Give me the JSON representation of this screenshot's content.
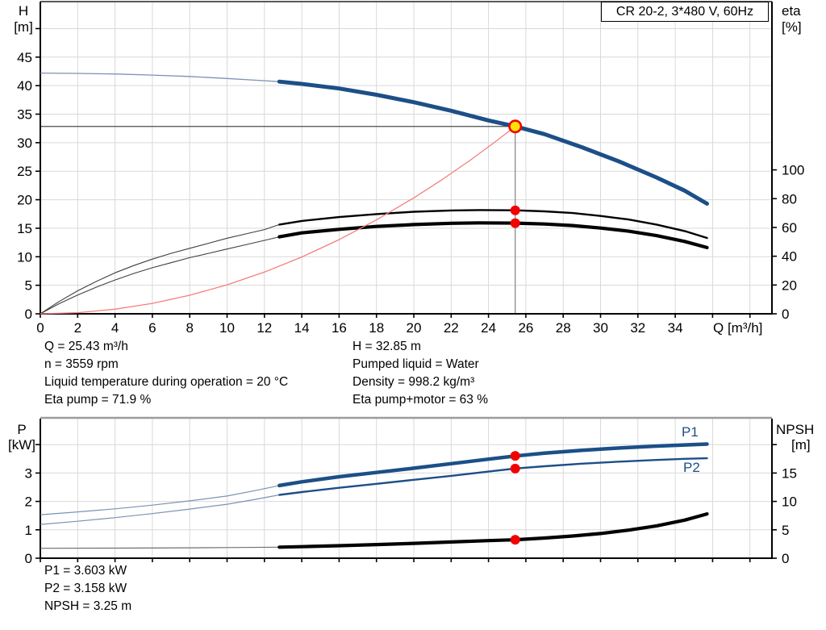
{
  "title_box": {
    "label": "CR 20-2, 3*480 V, 60Hz"
  },
  "info_top_left": {
    "lines": [
      "Q = 25.43 m³/h",
      "n = 3559 rpm",
      "Liquid temperature during operation = 20 °C",
      "Eta pump = 71.9 %"
    ]
  },
  "info_top_right": {
    "lines": [
      "H = 32.85 m",
      "Pumped liquid = Water",
      "Density = 998.2 kg/m³",
      "Eta pump+motor = 63 %"
    ]
  },
  "info_bottom": {
    "lines": [
      "P1 = 3.603 kW",
      "P2 = 3.158 kW",
      "NPSH = 3.25 m"
    ]
  },
  "colors": {
    "blue": "#1c4f87",
    "blue_thin": "#7d92b4",
    "black": "#000000",
    "eta_thin": "#3f3f3f",
    "npsh_thin": "#6f6f6f",
    "red": "#f20000",
    "red_line": "#f57e7e",
    "yellow": "#ffe10a",
    "grid": "#d9d9d9",
    "axis": "#000000",
    "marker_gray": "#8a8a8a",
    "marker_dark": "#4c4c4c",
    "frame_gray": "#9c9c9c",
    "frame_dark": "#222222",
    "label_blue": "#1c4f87"
  },
  "chart_data": [
    {
      "type": "line",
      "id": "head-efficiency-chart",
      "title": "CR 20-2, 3*480 V, 60Hz",
      "xlabel": "Q [m³/h]",
      "xlim": [
        0,
        39.2
      ],
      "x_ticks": [
        0,
        2,
        4,
        6,
        8,
        10,
        12,
        14,
        16,
        18,
        20,
        22,
        24,
        26,
        28,
        30,
        32,
        34,
        36,
        38
      ],
      "x_ticks_labeled": [
        0,
        2,
        4,
        6,
        8,
        10,
        12,
        14,
        16,
        18,
        20,
        22,
        24,
        26,
        28,
        30,
        32,
        34
      ],
      "ylabel_left": "H",
      "yunit_left": "[m]",
      "ylim_left": [
        0,
        54.7
      ],
      "y_ticks_left": [
        0,
        5,
        10,
        15,
        20,
        25,
        30,
        35,
        40,
        45,
        50
      ],
      "y_ticks_left_labeled": [
        0,
        5,
        10,
        15,
        20,
        25,
        30,
        35,
        40,
        45
      ],
      "ylabel_right": "eta",
      "yunit_right": "[%]",
      "ylim_right": [
        0,
        217
      ],
      "y_ticks_right": [
        0,
        20,
        40,
        60,
        80,
        100
      ],
      "y_ticks_right_labeled": [
        0,
        20,
        40,
        60,
        80,
        100
      ],
      "grid": true,
      "operating_point": {
        "Q": 25.43,
        "H": 32.85
      },
      "series": [
        {
          "name": "head-curve",
          "axis": "left",
          "color": "blue",
          "thin_color": "blue_thin",
          "split_q": 12.8,
          "thick_width": 5,
          "thin_width": 1.3,
          "points": [
            [
              0,
              42.2
            ],
            [
              2,
              42.15
            ],
            [
              4,
              42.05
            ],
            [
              6,
              41.85
            ],
            [
              8,
              41.6
            ],
            [
              10,
              41.25
            ],
            [
              11.5,
              40.95
            ],
            [
              12.8,
              40.7
            ],
            [
              14,
              40.3
            ],
            [
              16,
              39.5
            ],
            [
              18,
              38.4
            ],
            [
              20,
              37.1
            ],
            [
              22,
              35.6
            ],
            [
              24,
              33.9
            ],
            [
              25.43,
              32.85
            ],
            [
              27,
              31.5
            ],
            [
              29,
              29.2
            ],
            [
              31,
              26.7
            ],
            [
              33,
              23.9
            ],
            [
              34.5,
              21.6
            ],
            [
              35.7,
              19.3
            ]
          ]
        },
        {
          "name": "eta-pump-curve",
          "axis": "right",
          "color": "black",
          "thin_color": "eta_thin",
          "split_q": 12.8,
          "thick_width": 2.4,
          "thin_width": 1.1,
          "points": [
            [
              0,
              0
            ],
            [
              1,
              8.5
            ],
            [
              2,
              16
            ],
            [
              3,
              22.5
            ],
            [
              4,
              28.5
            ],
            [
              5,
              33.5
            ],
            [
              6,
              38
            ],
            [
              7,
              42
            ],
            [
              8,
              45.5
            ],
            [
              9,
              49
            ],
            [
              10,
              52.5
            ],
            [
              11,
              55.5
            ],
            [
              12,
              58.5
            ],
            [
              12.8,
              62
            ],
            [
              14,
              64.5
            ],
            [
              16,
              67.2
            ],
            [
              18,
              69.3
            ],
            [
              20,
              70.9
            ],
            [
              22,
              71.8
            ],
            [
              23.5,
              72.1
            ],
            [
              25.43,
              71.9
            ],
            [
              27,
              71.2
            ],
            [
              28.5,
              70
            ],
            [
              30,
              68
            ],
            [
              31.5,
              65.5
            ],
            [
              33,
              62
            ],
            [
              34.5,
              57.5
            ],
            [
              35.7,
              52.7
            ]
          ]
        },
        {
          "name": "eta-pump-motor-curve",
          "axis": "right",
          "color": "black",
          "thin_color": "eta_thin",
          "split_q": 12.8,
          "thick_width": 4.2,
          "thin_width": 1.1,
          "points": [
            [
              0,
              0
            ],
            [
              1,
              7
            ],
            [
              2,
              13
            ],
            [
              3,
              18.5
            ],
            [
              4,
              23.5
            ],
            [
              5,
              28
            ],
            [
              6,
              32
            ],
            [
              7,
              35.5
            ],
            [
              8,
              39
            ],
            [
              9,
              42
            ],
            [
              10,
              45
            ],
            [
              11,
              48
            ],
            [
              12,
              51
            ],
            [
              12.8,
              53.5
            ],
            [
              14,
              56.2
            ],
            [
              16,
              58.7
            ],
            [
              18,
              60.7
            ],
            [
              20,
              62
            ],
            [
              22,
              62.9
            ],
            [
              23.5,
              63.2
            ],
            [
              25.43,
              63
            ],
            [
              27,
              62.4
            ],
            [
              28.5,
              61.3
            ],
            [
              30,
              59.6
            ],
            [
              31.5,
              57.4
            ],
            [
              33,
              54.3
            ],
            [
              34.5,
              50.3
            ],
            [
              35.7,
              46
            ]
          ]
        },
        {
          "name": "system-curve",
          "axis": "left",
          "color": "red_line",
          "thin_color": "red_line",
          "split_q": null,
          "thick_width": 1.3,
          "thin_width": 1.3,
          "points": [
            [
              0,
              0
            ],
            [
              2,
              0.2
            ],
            [
              4,
              0.81
            ],
            [
              6,
              1.83
            ],
            [
              8,
              3.25
            ],
            [
              10,
              5.08
            ],
            [
              12,
              7.31
            ],
            [
              14,
              9.96
            ],
            [
              16,
              13.0
            ],
            [
              18,
              16.46
            ],
            [
              20,
              20.32
            ],
            [
              21.5,
              23.49
            ],
            [
              23,
              26.87
            ],
            [
              24.3,
              29.99
            ],
            [
              25.43,
              32.85
            ]
          ]
        }
      ],
      "markers": [
        {
          "name": "duty-point",
          "Q": 25.43,
          "value": 32.85,
          "axis": "left",
          "style": "duty"
        },
        {
          "name": "eta-pump-point",
          "Q": 25.43,
          "value": 71.9,
          "axis": "right",
          "style": "dot"
        },
        {
          "name": "eta-pump-motor-point",
          "Q": 25.43,
          "value": 63,
          "axis": "right",
          "style": "dot"
        }
      ]
    },
    {
      "type": "line",
      "id": "power-npsh-chart",
      "xlabel": "",
      "xlim": [
        0,
        39.2
      ],
      "x_ticks": [
        0,
        2,
        4,
        6,
        8,
        10,
        12,
        14,
        16,
        18,
        20,
        22,
        24,
        26,
        28,
        30,
        32,
        34,
        36,
        38
      ],
      "x_ticks_labeled": [],
      "ylabel_left": "P",
      "yunit_left": "[kW]",
      "ylim_left": [
        0,
        4.9
      ],
      "y_ticks_left": [
        0,
        1,
        2,
        3,
        4
      ],
      "y_ticks_left_labeled": [
        0,
        1,
        2,
        3
      ],
      "ylabel_right": "NPSH",
      "yunit_right": "[m]",
      "ylim_right": [
        0,
        24.6
      ],
      "y_ticks_right": [
        0,
        5,
        10,
        15,
        20
      ],
      "y_ticks_right_labeled": [
        0,
        5,
        10,
        15
      ],
      "grid": true,
      "series": [
        {
          "name": "p1-curve",
          "axis": "left",
          "color": "blue",
          "thin_color": "blue_thin",
          "split_q": 12.8,
          "thick_width": 4.5,
          "thin_width": 1.2,
          "label": "P1",
          "points": [
            [
              0,
              1.53
            ],
            [
              2,
              1.63
            ],
            [
              4,
              1.74
            ],
            [
              6,
              1.87
            ],
            [
              8,
              2.02
            ],
            [
              10,
              2.19
            ],
            [
              11.5,
              2.38
            ],
            [
              12.8,
              2.56
            ],
            [
              14,
              2.69
            ],
            [
              16,
              2.87
            ],
            [
              18,
              3.02
            ],
            [
              20,
              3.17
            ],
            [
              22,
              3.33
            ],
            [
              24,
              3.49
            ],
            [
              25.43,
              3.6
            ],
            [
              27,
              3.7
            ],
            [
              29,
              3.8
            ],
            [
              31,
              3.88
            ],
            [
              33,
              3.95
            ],
            [
              34.5,
              3.99
            ],
            [
              35.7,
              4.02
            ]
          ]
        },
        {
          "name": "p2-curve",
          "axis": "left",
          "color": "blue",
          "thin_color": "blue_thin",
          "split_q": 12.8,
          "thick_width": 2.4,
          "thin_width": 1.2,
          "label": "P2",
          "points": [
            [
              0,
              1.19
            ],
            [
              2,
              1.3
            ],
            [
              4,
              1.43
            ],
            [
              6,
              1.57
            ],
            [
              8,
              1.73
            ],
            [
              10,
              1.9
            ],
            [
              11.5,
              2.07
            ],
            [
              12.8,
              2.23
            ],
            [
              14,
              2.33
            ],
            [
              16,
              2.48
            ],
            [
              18,
              2.62
            ],
            [
              20,
              2.76
            ],
            [
              22,
              2.9
            ],
            [
              24,
              3.05
            ],
            [
              25.43,
              3.16
            ],
            [
              27,
              3.24
            ],
            [
              29,
              3.33
            ],
            [
              31,
              3.4
            ],
            [
              33,
              3.46
            ],
            [
              34.5,
              3.5
            ],
            [
              35.7,
              3.52
            ]
          ]
        },
        {
          "name": "npsh-curve",
          "axis": "right",
          "color": "black",
          "thin_color": "npsh_thin",
          "split_q": 12.8,
          "thick_width": 4.2,
          "thin_width": 1.2,
          "points": [
            [
              0,
              1.75
            ],
            [
              4,
              1.77
            ],
            [
              8,
              1.83
            ],
            [
              10,
              1.88
            ],
            [
              12.8,
              1.95
            ],
            [
              14,
              2.03
            ],
            [
              16,
              2.2
            ],
            [
              18,
              2.4
            ],
            [
              20,
              2.62
            ],
            [
              22,
              2.86
            ],
            [
              24,
              3.1
            ],
            [
              25.43,
              3.25
            ],
            [
              27,
              3.55
            ],
            [
              28.5,
              3.9
            ],
            [
              30,
              4.35
            ],
            [
              31.5,
              4.95
            ],
            [
              33,
              5.7
            ],
            [
              34.5,
              6.7
            ],
            [
              35.7,
              7.8
            ]
          ]
        }
      ],
      "markers": [
        {
          "name": "p1-point",
          "Q": 25.43,
          "value": 3.603,
          "axis": "left",
          "style": "dot"
        },
        {
          "name": "p2-point",
          "Q": 25.43,
          "value": 3.158,
          "axis": "left",
          "style": "dot"
        },
        {
          "name": "npsh-point",
          "Q": 25.43,
          "value": 3.25,
          "axis": "right",
          "style": "dot"
        }
      ]
    }
  ]
}
